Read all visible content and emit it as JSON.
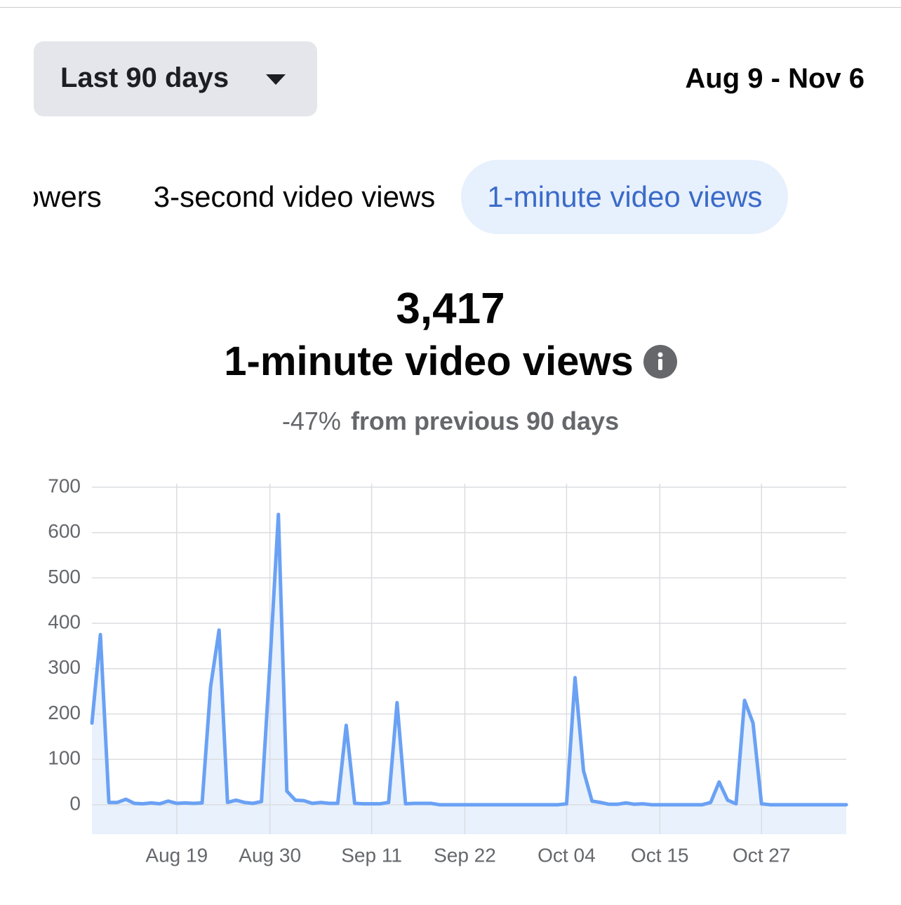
{
  "header": {
    "range_selector": "Last 90 days",
    "date_range": "Aug 9 - Nov 6"
  },
  "tabs": [
    "Followers",
    "3-second video views",
    "1-minute video views"
  ],
  "active_tab": 2,
  "summary": {
    "value": "3,417",
    "metric": "1-minute video views",
    "change": "-47%",
    "comparison": "from previous 90 days"
  },
  "chart_data": {
    "type": "line",
    "categories": [
      null,
      null,
      null,
      null,
      null,
      null,
      null,
      null,
      null,
      null,
      "Aug 19",
      null,
      null,
      null,
      null,
      null,
      null,
      null,
      null,
      null,
      null,
      "Aug 30",
      null,
      null,
      null,
      null,
      null,
      null,
      null,
      null,
      null,
      null,
      null,
      "Sep 11",
      null,
      null,
      null,
      null,
      null,
      null,
      null,
      null,
      null,
      null,
      "Sep 22",
      null,
      null,
      null,
      null,
      null,
      null,
      null,
      null,
      null,
      null,
      null,
      "Oct 04",
      null,
      null,
      null,
      null,
      null,
      null,
      null,
      null,
      null,
      null,
      "Oct 15",
      null,
      null,
      null,
      null,
      null,
      null,
      null,
      null,
      null,
      null,
      null,
      "Oct 27",
      null,
      null,
      null,
      null,
      null,
      null,
      null,
      null,
      null,
      null
    ],
    "series": [
      {
        "color": "#6aa1f4",
        "fill": "#e8f1fc",
        "values": [
          180,
          375,
          5,
          5,
          12,
          3,
          2,
          4,
          2,
          8,
          3,
          4,
          3,
          4,
          260,
          385,
          5,
          10,
          5,
          3,
          7,
          310,
          640,
          30,
          10,
          9,
          3,
          5,
          3,
          3,
          175,
          3,
          2,
          2,
          2,
          5,
          225,
          2,
          3,
          3,
          3,
          0,
          0,
          0,
          0,
          0,
          0,
          0,
          0,
          0,
          0,
          0,
          0,
          0,
          0,
          0,
          2,
          280,
          75,
          8,
          5,
          1,
          1,
          4,
          1,
          2,
          0,
          0,
          0,
          0,
          0,
          0,
          0,
          5,
          50,
          10,
          2,
          230,
          180,
          2,
          0,
          0,
          0,
          0,
          0,
          0,
          0,
          0,
          0,
          0
        ]
      }
    ],
    "ylim": [
      -65,
      700
    ],
    "yticks": [
      0,
      100,
      200,
      300,
      400,
      500,
      600,
      700
    ],
    "grid": true
  }
}
